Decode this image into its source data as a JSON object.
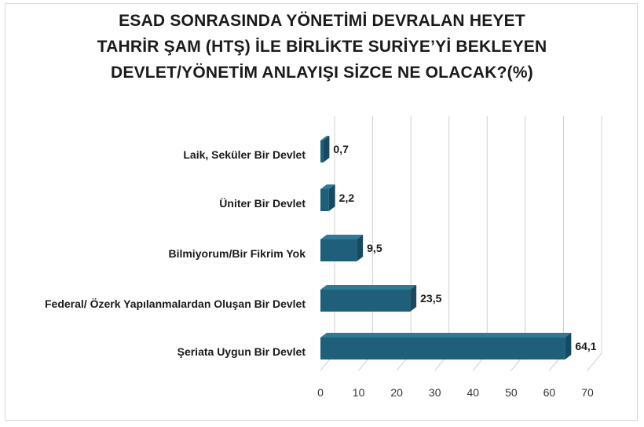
{
  "chart_data": {
    "type": "bar",
    "orientation": "horizontal",
    "title_lines": [
      "ESAD SONRASINDA YÖNETİMİ DEVRALAN HEYET",
      "TAHRİR ŞAM (HTŞ) İLE BİRLİKTE SURİYE’Yİ BEKLEYEN",
      "DEVLET/YÖNETİM ANLAYIŞI SİZCE NE OLACAK?(%)"
    ],
    "categories": [
      "Laik, Seküler Bir Devlet",
      "Üniter Bir Devlet",
      "Bilmiyorum/Bir Fikrim Yok",
      "Federal/ Özerk Yapılanmalardan Oluşan  Bir Devlet",
      "Şeriata Uygun Bir Devlet"
    ],
    "values": [
      0.7,
      2.2,
      9.5,
      23.5,
      64.1
    ],
    "value_labels": [
      "0,7",
      "2,2",
      "9,5",
      "23,5",
      "64,1"
    ],
    "xlim": [
      0,
      70
    ],
    "xticks": [
      "0",
      "10",
      "20",
      "30",
      "40",
      "50",
      "60",
      "70"
    ],
    "grid": true,
    "bar_color": "#1f5f7a",
    "bar_top_color": "#2e7a97",
    "bar_side_color": "#164a60"
  }
}
